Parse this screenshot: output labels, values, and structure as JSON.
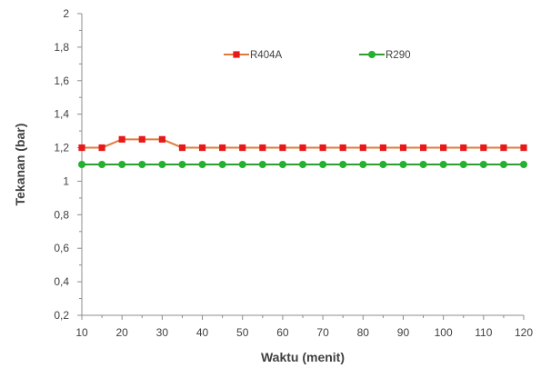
{
  "chart_data": {
    "type": "line",
    "title": "",
    "xlabel": "Waktu (menit)",
    "ylabel": "Tekanan (bar)",
    "xlim": [
      10,
      120
    ],
    "ylim": [
      0.2,
      2
    ],
    "x_ticks": [
      "10",
      "20",
      "30",
      "40",
      "50",
      "60",
      "70",
      "80",
      "90",
      "100",
      "110",
      "120"
    ],
    "x_tick_values": [
      10,
      20,
      30,
      40,
      50,
      60,
      70,
      80,
      90,
      100,
      110,
      120
    ],
    "y_ticks": [
      "0,2",
      "0,4",
      "0,6",
      "0,8",
      "1",
      "1,2",
      "1,4",
      "1,6",
      "1,8",
      "2"
    ],
    "y_tick_values": [
      0.2,
      0.4,
      0.6,
      0.8,
      1.0,
      1.2,
      1.4,
      1.6,
      1.8,
      2.0
    ],
    "grid": false,
    "legend_position": "top",
    "x": [
      10,
      15,
      20,
      25,
      30,
      35,
      40,
      45,
      50,
      55,
      60,
      65,
      70,
      75,
      80,
      85,
      90,
      95,
      100,
      105,
      110,
      115,
      120
    ],
    "series": [
      {
        "name": "R404A",
        "line_color": "#E07B39",
        "marker_color": "#E8191A",
        "marker": "square",
        "values": [
          1.2,
          1.2,
          1.25,
          1.25,
          1.25,
          1.2,
          1.2,
          1.2,
          1.2,
          1.2,
          1.2,
          1.2,
          1.2,
          1.2,
          1.2,
          1.2,
          1.2,
          1.2,
          1.2,
          1.2,
          1.2,
          1.2,
          1.2
        ]
      },
      {
        "name": "R290",
        "line_color": "#2E9E2E",
        "marker_color": "#22B22E",
        "marker": "circle",
        "values": [
          1.1,
          1.1,
          1.1,
          1.1,
          1.1,
          1.1,
          1.1,
          1.1,
          1.1,
          1.1,
          1.1,
          1.1,
          1.1,
          1.1,
          1.1,
          1.1,
          1.1,
          1.1,
          1.1,
          1.1,
          1.1,
          1.1,
          1.1
        ]
      }
    ]
  }
}
